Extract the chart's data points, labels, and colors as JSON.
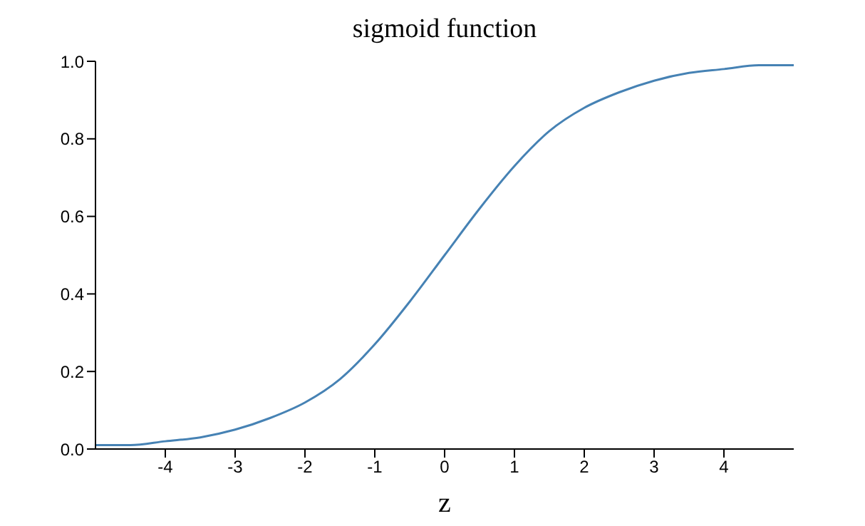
{
  "chart_data": {
    "type": "line",
    "title": "sigmoid function",
    "xlabel": "z",
    "x": [
      -5,
      -4.5,
      -4,
      -3.5,
      -3,
      -2.5,
      -2,
      -1.5,
      -1,
      -0.5,
      0,
      0.5,
      1,
      1.5,
      2,
      2.5,
      3,
      3.5,
      4,
      4.5,
      5
    ],
    "series": [
      {
        "color": "#4682b4",
        "values": [
          0.01,
          0.01,
          0.02,
          0.03,
          0.05,
          0.08,
          0.12,
          0.18,
          0.27,
          0.38,
          0.5,
          0.62,
          0.73,
          0.82,
          0.88,
          0.92,
          0.95,
          0.97,
          0.98,
          0.99,
          0.99
        ]
      }
    ],
    "xlim": [
      -5,
      5
    ],
    "xticks": [
      -4,
      -3,
      -2,
      -1,
      0,
      1,
      2,
      3,
      4
    ],
    "ylim": [
      0,
      1
    ],
    "yticks": [
      {
        "value": 0,
        "label": "0.0"
      },
      {
        "value": 0.2,
        "label": "0.2"
      },
      {
        "value": 0.4,
        "label": "0.4"
      },
      {
        "value": 0.6,
        "label": "0.6"
      },
      {
        "value": 0.8,
        "label": "0.8"
      },
      {
        "value": 1,
        "label": "1.0"
      }
    ],
    "grid": false,
    "legend": false,
    "marker": "none",
    "line_style": "solid"
  }
}
